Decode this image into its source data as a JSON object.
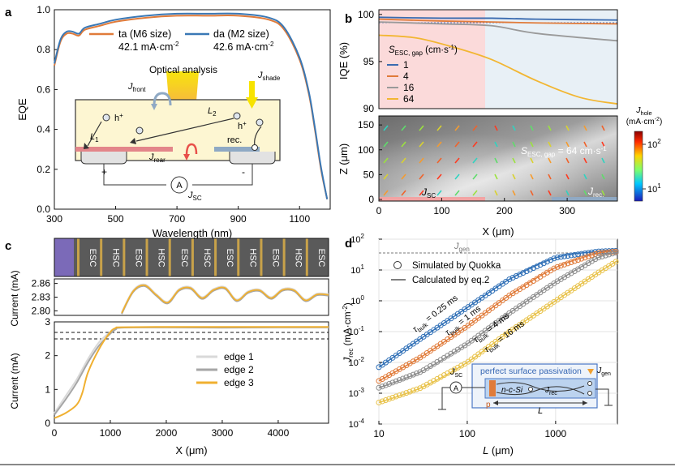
{
  "panels": {
    "a": {
      "letter": "a",
      "ylabel": "EQE",
      "xlabel": "Wavelength (nm)",
      "xticks": [
        "300",
        "500",
        "700",
        "900",
        "1100"
      ],
      "yticks": [
        "0.0",
        "0.2",
        "0.4",
        "0.6",
        "0.8",
        "1.0"
      ],
      "legend": [
        {
          "name": "ta (M6 size)",
          "value": "42.1 mA·cm",
          "sup": "-2",
          "color": "#e07b3a"
        },
        {
          "name": "da (M2 size)",
          "value": "42.6 mA·cm",
          "sup": "-2",
          "color": "#3a78b5"
        }
      ],
      "inset": {
        "optical": "Optical analysis",
        "jfront": "J",
        "jfront_sub": "front",
        "jshade": "J",
        "jshade_sub": "shade",
        "jrear": "J",
        "jrear_sub": "rear",
        "l1": "L",
        "l1_sub": "1",
        "l2": "L",
        "l2_sub": "2",
        "hplus1": "h",
        "hplus2": "h",
        "plus": "+",
        "rec": "rec.",
        "plus_sign": "+",
        "minus_sign": "-",
        "meter": "A",
        "jsc": "J",
        "jsc_sub": "SC"
      }
    },
    "b": {
      "letter": "b",
      "ylabel_top": "IQE (%)",
      "yticks_top": [
        "90",
        "95",
        "100"
      ],
      "legend_title": "S",
      "legend_title_sub": "ESC, gap",
      "legend_title_unit": " (cm·s",
      "legend_title_sup": "-1",
      "legend_title_end": ")",
      "legend": [
        {
          "name": "1",
          "color": "#3a6bb0"
        },
        {
          "name": "4",
          "color": "#e07b3a"
        },
        {
          "name": "16",
          "color": "#9a9a9a"
        },
        {
          "name": "64",
          "color": "#f2b632"
        }
      ],
      "ylabel_bottom": "Z (μm)",
      "yticks_bottom": [
        "0",
        "50",
        "100",
        "150"
      ],
      "xlabel": "X (μm)",
      "xticks": [
        "0",
        "100",
        "200",
        "300"
      ],
      "map_label": "S",
      "map_label_sub": "ESC, gap",
      "map_label_val": " = 64 cm·s",
      "map_label_sup": "-1",
      "jsc": "J",
      "jsc_sub": "SC",
      "jrec": "J",
      "jrec_sub": "rec.",
      "cbar_title": "J",
      "cbar_title_sub": "hole",
      "cbar_unit": "(mA·cm",
      "cbar_unit_sup": "-2",
      "cbar_unit_end": ")",
      "cbar_ticks": [
        {
          "base": "10",
          "exp": "2"
        },
        {
          "base": "10",
          "exp": "1"
        }
      ]
    },
    "c": {
      "letter": "c",
      "strip": [
        "ESC",
        "HSC",
        "ESC",
        "HSC",
        "ESC",
        "HSC",
        "ESC",
        "HSC",
        "ESC",
        "HSC",
        "ESC"
      ],
      "ylabel_top": "Current (mA)",
      "yticks_top": [
        "2.80",
        "2.83",
        "2.86"
      ],
      "ylabel_bottom": "Current (mA)",
      "yticks_bottom": [
        "0",
        "1",
        "2",
        "3"
      ],
      "xlabel": "X (μm)",
      "xticks": [
        "0",
        "1000",
        "2000",
        "3000",
        "4000"
      ],
      "legend": [
        {
          "name": "edge 1",
          "color": "#d9d9d9"
        },
        {
          "name": "edge 2",
          "color": "#a6a6a6"
        },
        {
          "name": "edge 3",
          "color": "#f0b030"
        }
      ]
    },
    "d": {
      "letter": "d",
      "ylabel": "J",
      "ylabel_sub": "rec",
      "ylabel_unit": " (mA·cm",
      "ylabel_sup": "-2",
      "ylabel_end": ")",
      "xlabel": "L",
      "xlabel_unit": " (μm)",
      "xticks": [
        "10",
        "100",
        "1000"
      ],
      "yticks": [
        {
          "base": "10",
          "exp": "2"
        },
        {
          "base": "10",
          "exp": "1"
        },
        {
          "base": "10",
          "exp": "0"
        },
        {
          "base": "10",
          "exp": "-1"
        },
        {
          "base": "10",
          "exp": "-2"
        },
        {
          "base": "10",
          "exp": "-3"
        },
        {
          "base": "10",
          "exp": "-4"
        }
      ],
      "jgen": "J",
      "jgen_sub": "gen",
      "legend": [
        {
          "name": "Simulated by Quokka",
          "marker": "circle"
        },
        {
          "name": "Calculated by eq.2",
          "marker": "line"
        }
      ],
      "tau": [
        {
          "t": "τ",
          "sub": "bulk",
          "val": " = 0.25 ms",
          "color": "#2f6fb6"
        },
        {
          "t": "τ",
          "sub": "bulk",
          "val": " = 1 ms",
          "color": "#e07b3a"
        },
        {
          "t": "τ",
          "sub": "bulk",
          "val": " = 4 ms",
          "color": "#8c8c8c"
        },
        {
          "t": "τ",
          "sub": "bulk",
          "val": " = 16 ms",
          "color": "#e8c24a"
        }
      ],
      "inset": {
        "title": "perfect surface passivation",
        "jsc": "J",
        "jsc_sub": "SC",
        "jgen": "J",
        "jgen_sub": "gen",
        "ncsi": "n-c-Si",
        "jrec": "J",
        "jrec_sub": "rec",
        "meter": "A",
        "p": "p",
        "L": "L"
      }
    }
  },
  "chart_data": [
    {
      "type": "line",
      "xlabel": "Wavelength (nm)",
      "ylabel": "EQE",
      "xlim": [
        300,
        1200
      ],
      "ylim": [
        0,
        1
      ],
      "series": [
        {
          "name": "ta (M6 size)",
          "x": [
            300,
            320,
            340,
            360,
            380,
            400,
            450,
            500,
            600,
            700,
            800,
            900,
            1000,
            1050,
            1100,
            1130,
            1150,
            1170,
            1190
          ],
          "y": [
            0.72,
            0.84,
            0.88,
            0.88,
            0.87,
            0.9,
            0.92,
            0.94,
            0.96,
            0.97,
            0.97,
            0.97,
            0.95,
            0.9,
            0.75,
            0.58,
            0.4,
            0.2,
            0.05
          ]
        },
        {
          "name": "da (M2 size)",
          "x": [
            300,
            320,
            340,
            360,
            380,
            400,
            450,
            500,
            600,
            700,
            800,
            900,
            1000,
            1050,
            1100,
            1130,
            1150,
            1170,
            1190
          ],
          "y": [
            0.73,
            0.85,
            0.89,
            0.89,
            0.88,
            0.91,
            0.93,
            0.95,
            0.97,
            0.98,
            0.98,
            0.98,
            0.96,
            0.91,
            0.76,
            0.59,
            0.41,
            0.21,
            0.05
          ]
        }
      ]
    },
    {
      "type": "line",
      "ylabel": "IQE (%)",
      "xlabel": "X (μm)",
      "xlim": [
        0,
        380
      ],
      "ylim": [
        90,
        100.5
      ],
      "series": [
        {
          "name": "1",
          "x": [
            0,
            100,
            180,
            250,
            380
          ],
          "y": [
            99.7,
            99.6,
            99.6,
            99.5,
            99.4
          ]
        },
        {
          "name": "4",
          "x": [
            0,
            100,
            180,
            250,
            380
          ],
          "y": [
            99.5,
            99.3,
            99.2,
            99.1,
            99.0
          ]
        },
        {
          "name": "16",
          "x": [
            0,
            100,
            180,
            250,
            380
          ],
          "y": [
            99.2,
            99.0,
            98.8,
            98.0,
            97.2
          ]
        },
        {
          "name": "64",
          "x": [
            0,
            60,
            120,
            180,
            250,
            320,
            380
          ],
          "y": [
            97.8,
            97.5,
            96.5,
            95.2,
            93.0,
            91.2,
            90.5
          ]
        }
      ]
    },
    {
      "type": "line",
      "ylabel": "Current (mA)",
      "xlabel": "X (μm)",
      "xlim": [
        0,
        4900
      ],
      "ylim": [
        0,
        3
      ],
      "series": [
        {
          "name": "edge 1",
          "x": [
            0,
            200,
            400,
            600,
            800,
            1000,
            1100,
            1200,
            2000,
            3000,
            4000,
            4900
          ],
          "y": [
            0.3,
            0.8,
            1.3,
            1.9,
            2.4,
            2.7,
            2.8,
            2.83,
            2.83,
            2.83,
            2.83,
            2.83
          ]
        },
        {
          "name": "edge 2",
          "x": [
            0,
            200,
            400,
            600,
            800,
            1000,
            1100,
            1200,
            2000,
            3000,
            4000,
            4900
          ],
          "y": [
            0.25,
            0.7,
            1.2,
            1.8,
            2.3,
            2.65,
            2.78,
            2.83,
            2.84,
            2.83,
            2.84,
            2.84
          ]
        },
        {
          "name": "edge 3",
          "x": [
            0,
            200,
            400,
            500,
            600,
            800,
            1000,
            1100,
            1200,
            2000,
            3000,
            4000,
            4900
          ],
          "y": [
            0.15,
            0.3,
            0.55,
            0.9,
            1.5,
            2.2,
            2.7,
            2.82,
            2.84,
            2.85,
            2.85,
            2.85,
            2.85
          ]
        }
      ]
    },
    {
      "type": "scatter",
      "xlabel": "L (μm)",
      "ylabel": "J rec (mA·cm-2)",
      "xscale": "log",
      "yscale": "log",
      "xlim": [
        10,
        5000
      ],
      "ylim": [
        0.0001,
        100
      ],
      "jgen": 40,
      "series": [
        {
          "name": "τ bulk = 0.25 ms",
          "x": [
            10,
            30,
            100,
            300,
            1000,
            3000,
            5000
          ],
          "y": [
            0.007,
            0.06,
            0.6,
            5,
            25,
            40,
            42
          ]
        },
        {
          "name": "τ bulk = 1 ms",
          "x": [
            10,
            30,
            100,
            300,
            1000,
            3000,
            5000
          ],
          "y": [
            0.0025,
            0.015,
            0.15,
            1.5,
            12,
            35,
            40
          ]
        },
        {
          "name": "τ bulk = 4 ms",
          "x": [
            10,
            30,
            100,
            300,
            1000,
            3000,
            5000
          ],
          "y": [
            0.0015,
            0.005,
            0.04,
            0.4,
            4,
            25,
            38
          ]
        },
        {
          "name": "τ bulk = 16 ms",
          "x": [
            10,
            30,
            100,
            300,
            1000,
            3000,
            5000
          ],
          "y": [
            0.0005,
            0.0015,
            0.01,
            0.1,
            1,
            8,
            20
          ]
        }
      ]
    }
  ]
}
